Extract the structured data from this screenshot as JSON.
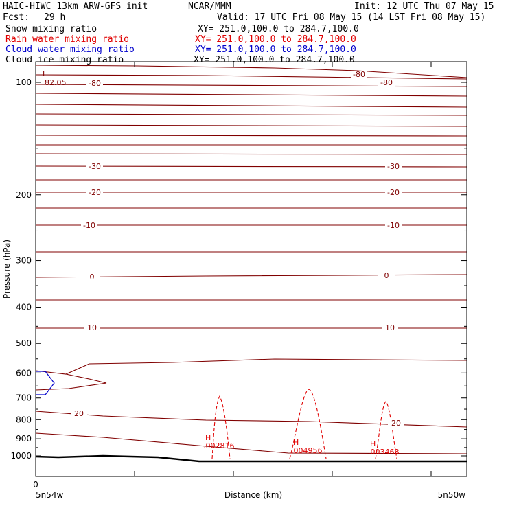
{
  "header": {
    "model": "HAIC-HIWC 13km ARW-GFS init",
    "org": "NCAR/MMM",
    "init": "Init: 12 UTC Thu 07 May 15",
    "fcst_label": "Fcst:",
    "fcst_value": "29 h",
    "valid": "Valid: 17 UTC Fri 08 May 15 (14 LST Fri 08 May 15)"
  },
  "fields": [
    {
      "label": "Snow mixing ratio",
      "xy": "XY= 251.0,100.0 to 284.7,100.0",
      "color": "#000000"
    },
    {
      "label": "Rain water mixing ratio",
      "xy": "XY= 251.0,100.0 to 284.7,100.0",
      "color": "#e00000"
    },
    {
      "label": "Cloud water mixing ratio",
      "xy": "XY= 251.0,100.0 to 284.7,100.0",
      "color": "#0000cc"
    },
    {
      "label": "Cloud ice mixing ratio",
      "xy": "XY= 251.0,100.0 to 284.7,100.0",
      "color": "#000000"
    }
  ],
  "chart_data": {
    "type": "line",
    "title": "",
    "xlabel": "Distance (km)",
    "ylabel": "Pressure (hPa)",
    "y_scale": "log",
    "ylim": [
      1050,
      80
    ],
    "y_ticks": [
      100,
      200,
      300,
      400,
      500,
      600,
      700,
      800,
      900,
      1000
    ],
    "x_tick_start_label": "0",
    "x_left_label": "5n54w",
    "x_right_label": "5n50w",
    "temperature_contour_labels": [
      "-80",
      "-80",
      "-80",
      "-30",
      "-30",
      "-20",
      "-20",
      "-10",
      "-10",
      "0",
      "0",
      "10",
      "10",
      "20",
      "20"
    ],
    "low_marker": {
      "label": "L",
      "value": "82.05"
    },
    "rain_maxima": [
      {
        "label": "H",
        "value": ".002816"
      },
      {
        "label": "H",
        "value": ".004956"
      },
      {
        "label": "H",
        "value": ".003468"
      }
    ],
    "colors": {
      "temperature": "#800000",
      "rain": "#e00000",
      "cloud_water": "#0000cc",
      "terrain": "#000000"
    }
  }
}
